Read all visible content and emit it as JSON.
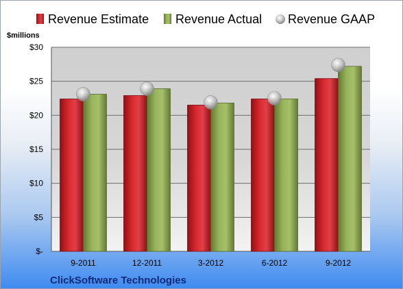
{
  "chart_data": {
    "type": "bar",
    "title": "",
    "ylabel": "$millions",
    "xlabel": "",
    "ylim": [
      0,
      30
    ],
    "yticks": [
      {
        "value": 0,
        "label": "$-"
      },
      {
        "value": 5,
        "label": "$5"
      },
      {
        "value": 10,
        "label": "$10"
      },
      {
        "value": 15,
        "label": "$15"
      },
      {
        "value": 20,
        "label": "$20"
      },
      {
        "value": 25,
        "label": "$25"
      },
      {
        "value": 30,
        "label": "$30"
      }
    ],
    "categories": [
      "9-2011",
      "12-2011",
      "3-2012",
      "6-2012",
      "9-2012"
    ],
    "series": [
      {
        "name": "Revenue Estimate",
        "type": "bar",
        "color": "#c8242a",
        "values": [
          22.4,
          22.9,
          21.5,
          22.4,
          25.4
        ]
      },
      {
        "name": "Revenue Actual",
        "type": "bar",
        "color": "#8faa52",
        "values": [
          23.1,
          23.9,
          21.8,
          22.4,
          27.2
        ]
      },
      {
        "name": "Revenue GAAP",
        "type": "marker",
        "color": "#b8b8b8",
        "values": [
          23.1,
          23.9,
          21.9,
          22.5,
          27.4
        ]
      }
    ],
    "grid": true,
    "legend": "top",
    "company": "ClickSoftware Technologies"
  }
}
